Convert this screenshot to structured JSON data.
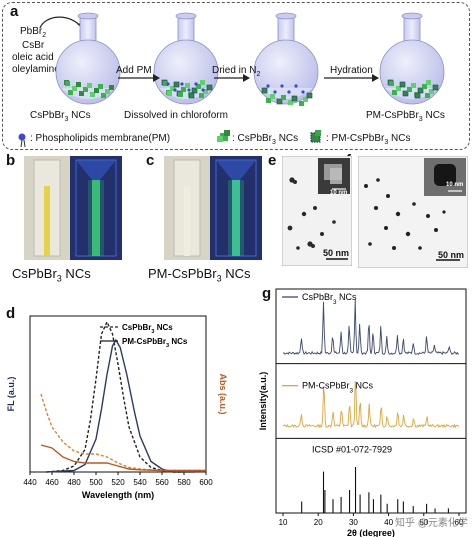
{
  "panel_a": {
    "label": "a",
    "reagents": [
      "PbBr",
      "CsBr",
      "oleic acid",
      "oleylamine"
    ],
    "reagent_sub": "2",
    "steps": [
      "Add PM",
      "Dissolved in chloroform",
      "Dried in N",
      "Hydration"
    ],
    "dried_sub": "2",
    "flask_captions": [
      "CsPbBr",
      "Dissolved in chloroform",
      "PM-CsPbBr"
    ],
    "caption_sub": "3",
    "caption_suffix": " NCs",
    "legend": [
      {
        "label": ": Phospholipids membrane(PM)",
        "icon": "phospholipid-icon"
      },
      {
        "label": ": CsPbBr",
        "suffix": " NCs",
        "icon": "cube-icon"
      },
      {
        "label": ": PM-CsPbBr",
        "suffix": " NCs",
        "icon": "coated-cube-icon"
      }
    ]
  },
  "panel_b": {
    "label": "b",
    "caption": "CsPbBr",
    "sub": "3",
    "suffix": " NCs"
  },
  "panel_c": {
    "label": "c",
    "caption": "PM-CsPbBr",
    "sub": "3",
    "suffix": " NCs"
  },
  "panel_e": {
    "label": "e",
    "scale_main": "50 nm",
    "scale_inset": "10 nm"
  },
  "panel_f": {
    "label": "f",
    "scale_main": "50 nm",
    "scale_inset": "10 nm"
  },
  "panel_d": {
    "label": "d"
  },
  "panel_g": {
    "label": "g"
  },
  "chart_data": [
    {
      "type": "line",
      "panel": "d",
      "xlabel": "Wavelength (nm)",
      "ylabel_left": "FL (a.u.)",
      "ylabel_right": "Abs (a.u.)",
      "xlim": [
        440,
        600
      ],
      "xticks": [
        440,
        460,
        480,
        500,
        520,
        540,
        560,
        580,
        600
      ],
      "legend": [
        "CsPbBr3 NCs",
        "PM-CsPbBr3 NCs"
      ],
      "legend_display": [
        {
          "base": "CsPbBr",
          "sub": "3",
          "suffix": " NCs",
          "style": "dashed"
        },
        {
          "base": "PM-CsPbBr",
          "sub": "3",
          "suffix": " NCs",
          "style": "solid"
        }
      ],
      "series": [
        {
          "name": "CsPbBr3 NCs",
          "kind": "FL",
          "style": "dashed",
          "color": "#222222",
          "x": [
            455,
            470,
            480,
            490,
            495,
            500,
            505,
            510,
            515,
            520,
            525,
            530,
            540,
            550,
            560,
            570,
            580
          ],
          "y": [
            0,
            0.01,
            0.04,
            0.15,
            0.35,
            0.62,
            0.92,
            1.0,
            0.92,
            0.72,
            0.5,
            0.3,
            0.1,
            0.03,
            0.01,
            0,
            0
          ]
        },
        {
          "name": "PM-CsPbBr3 NCs",
          "kind": "FL",
          "style": "solid",
          "color": "#2b3a66",
          "x": [
            455,
            480,
            490,
            500,
            505,
            510,
            515,
            518,
            522,
            528,
            535,
            540,
            550,
            560,
            570,
            580,
            590
          ],
          "y": [
            0,
            0.01,
            0.05,
            0.22,
            0.42,
            0.65,
            0.84,
            0.88,
            0.83,
            0.65,
            0.4,
            0.24,
            0.07,
            0.02,
            0,
            0,
            0
          ]
        },
        {
          "name": "CsPbBr3 NCs",
          "kind": "Abs",
          "style": "dashed",
          "color": "#e0832a",
          "x": [
            450,
            455,
            460,
            470,
            480,
            490,
            500,
            510,
            520,
            530,
            540,
            560,
            580,
            600
          ],
          "y": [
            0.52,
            0.4,
            0.3,
            0.2,
            0.14,
            0.12,
            0.12,
            0.1,
            0.06,
            0.03,
            0.02,
            0.01,
            0.01,
            0.01
          ]
        },
        {
          "name": "PM-CsPbBr3 NCs",
          "kind": "Abs",
          "style": "solid",
          "color": "#c2561f",
          "x": [
            450,
            460,
            470,
            480,
            490,
            500,
            510,
            515,
            520,
            530,
            540,
            560,
            580,
            600
          ],
          "y": [
            0.18,
            0.16,
            0.1,
            0.07,
            0.06,
            0.06,
            0.06,
            0.05,
            0.04,
            0.02,
            0.015,
            0.01,
            0.01,
            0.01
          ]
        }
      ]
    },
    {
      "type": "line",
      "panel": "g",
      "xlabel": "2θ (degree)",
      "ylabel": "Intensity(a.u.)",
      "xlim": [
        8,
        62
      ],
      "xticks": [
        10,
        20,
        30,
        40,
        50,
        60
      ],
      "series": [
        {
          "name": "CsPbBr3 NCs",
          "display": {
            "base": "CsPbBr",
            "sub": "3",
            "suffix": " NCs"
          },
          "color": "#3c4a6e",
          "peaks": [
            [
              15.2,
              0.3
            ],
            [
              21.5,
              0.95
            ],
            [
              24.1,
              0.35
            ],
            [
              26.5,
              0.4
            ],
            [
              28.8,
              0.5
            ],
            [
              30.5,
              1.0
            ],
            [
              31.8,
              0.55
            ],
            [
              34.4,
              0.6
            ],
            [
              35.6,
              0.4
            ],
            [
              37.8,
              0.5
            ],
            [
              39.5,
              0.3
            ],
            [
              42.5,
              0.35
            ],
            [
              44.2,
              0.28
            ],
            [
              47.0,
              0.2
            ],
            [
              50.8,
              0.3
            ],
            [
              53.0,
              0.15
            ],
            [
              57.2,
              0.12
            ]
          ]
        },
        {
          "name": "PM-CsPbBr3 NCs",
          "display": {
            "base": "PM-CsPbBr",
            "sub": "3",
            "suffix": " NCs"
          },
          "color": "#e0a43a",
          "peaks": [
            [
              15.2,
              0.25
            ],
            [
              21.6,
              0.85
            ],
            [
              24.2,
              0.3
            ],
            [
              26.6,
              0.35
            ],
            [
              28.9,
              0.45
            ],
            [
              30.6,
              1.0
            ],
            [
              31.9,
              0.5
            ],
            [
              34.5,
              0.45
            ],
            [
              37.9,
              0.4
            ],
            [
              39.6,
              0.22
            ],
            [
              42.6,
              0.3
            ],
            [
              44.3,
              0.22
            ],
            [
              47.1,
              0.15
            ],
            [
              50.9,
              0.2
            ]
          ]
        },
        {
          "name": "ICSD #01-072-7929",
          "color": "#111111",
          "sticks": [
            [
              15.3,
              0.25
            ],
            [
              21.5,
              0.9
            ],
            [
              21.9,
              0.5
            ],
            [
              24.2,
              0.3
            ],
            [
              26.5,
              0.35
            ],
            [
              28.9,
              0.5
            ],
            [
              30.6,
              1.0
            ],
            [
              31.9,
              0.4
            ],
            [
              34.4,
              0.45
            ],
            [
              35.7,
              0.3
            ],
            [
              37.8,
              0.4
            ],
            [
              39.6,
              0.2
            ],
            [
              42.6,
              0.3
            ],
            [
              44.2,
              0.25
            ],
            [
              47.0,
              0.15
            ],
            [
              50.8,
              0.2
            ],
            [
              53.2,
              0.1
            ],
            [
              57.0,
              0.1
            ]
          ]
        }
      ]
    }
  ],
  "watermark": "知乎 @元素化学"
}
